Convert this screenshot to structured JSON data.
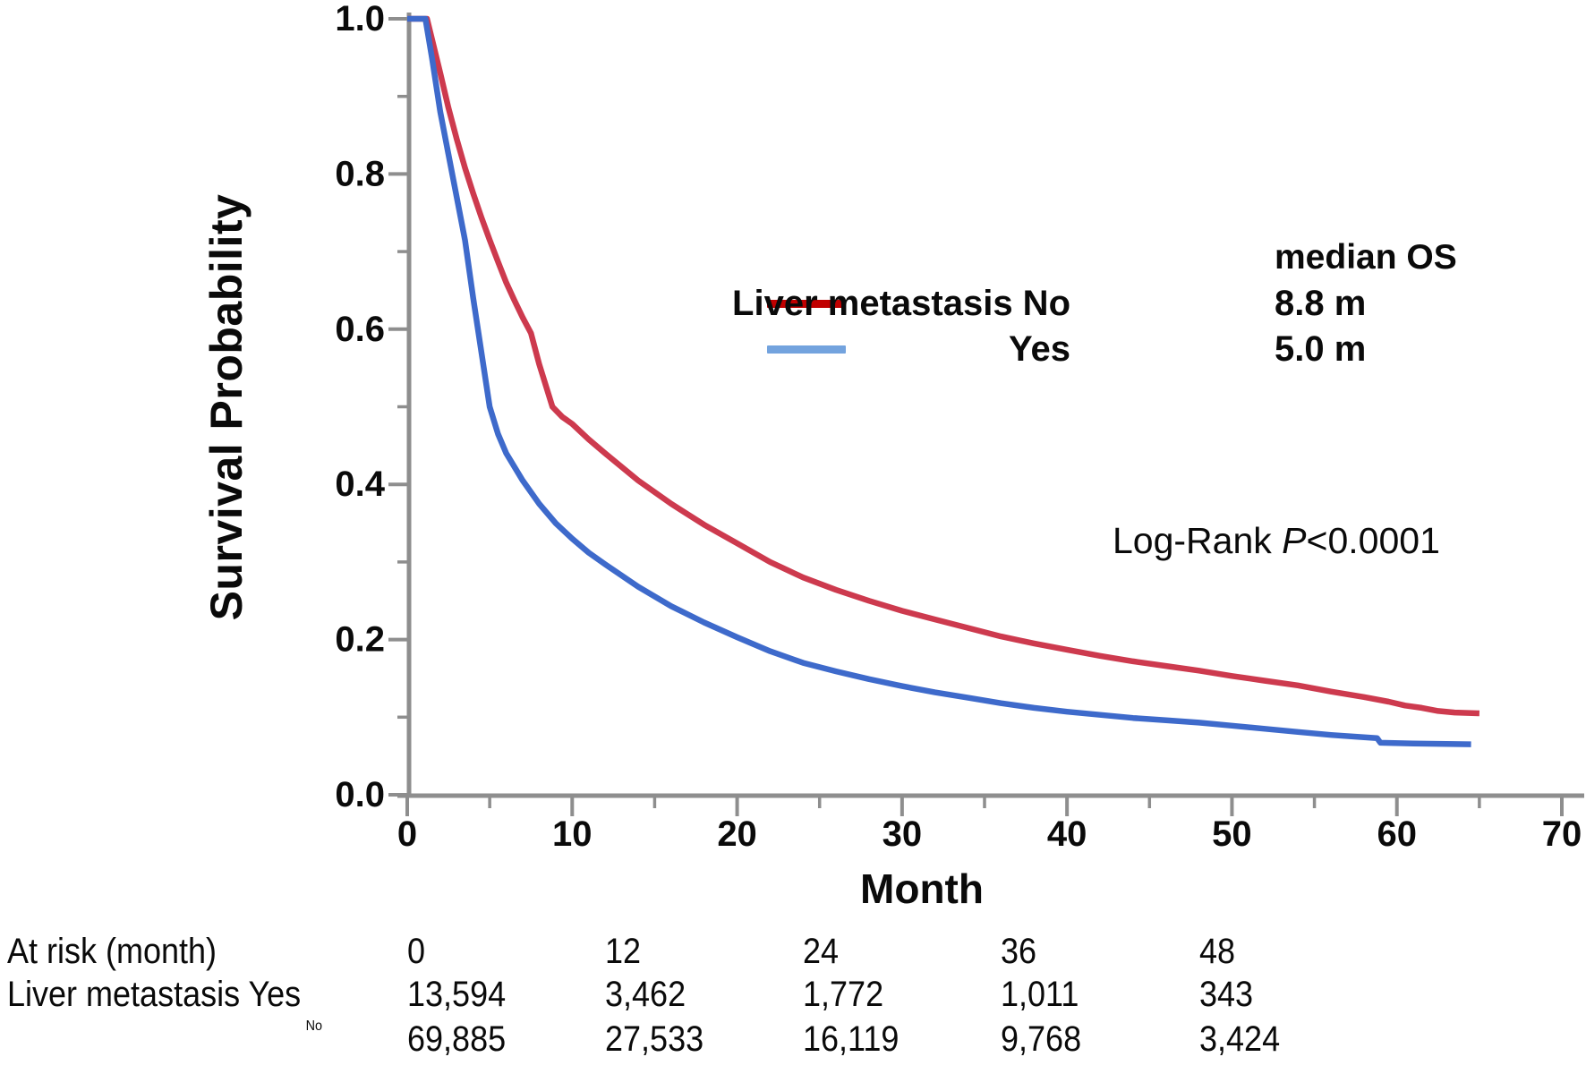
{
  "figure": {
    "y_axis_title": "Survival Probability",
    "x_axis_title": "Month",
    "log_rank": {
      "prefix": "Log-Rank ",
      "p": "P",
      "suffix": "<0.0001"
    }
  },
  "legend": {
    "header": "median OS",
    "items": [
      {
        "label": "Liver metastasis No",
        "median": "8.8 m",
        "color": "#C00000"
      },
      {
        "label": "Yes",
        "median": "5.0 m",
        "color": "#73A3DE"
      }
    ]
  },
  "chart_data": {
    "type": "line",
    "title": "",
    "xlabel": "Month",
    "ylabel": "Survival Probability",
    "xlim": [
      0,
      70
    ],
    "ylim": [
      0.0,
      1.0
    ],
    "grid": false,
    "legend_position": "right-inside",
    "x_ticks_major": [
      0,
      10,
      20,
      30,
      40,
      50,
      60,
      70
    ],
    "x_ticks_minor": [
      5,
      15,
      25,
      35,
      45,
      55,
      65
    ],
    "y_ticks_major": [
      1.0,
      0.8,
      0.6,
      0.4,
      0.2,
      0.0
    ],
    "y_ticks_minor": [
      0.9,
      0.7,
      0.5,
      0.3,
      0.1
    ],
    "x_tick_labels": [
      "0",
      "10",
      "20",
      "30",
      "40",
      "50",
      "60",
      "70"
    ],
    "y_tick_labels": [
      "1.0",
      "0.8",
      "0.6",
      "0.4",
      "0.2",
      "0.0"
    ],
    "axis_color": "#8E8E8E",
    "series": [
      {
        "name": "Liver metastasis No",
        "color": "#CD3A4E",
        "median_os_months": 8.8,
        "points": [
          [
            0,
            1.0
          ],
          [
            1.2,
            1.0
          ],
          [
            1.6,
            0.965
          ],
          [
            2,
            0.93
          ],
          [
            2.5,
            0.885
          ],
          [
            3,
            0.845
          ],
          [
            3.5,
            0.808
          ],
          [
            4,
            0.775
          ],
          [
            4.5,
            0.744
          ],
          [
            5,
            0.715
          ],
          [
            5.5,
            0.687
          ],
          [
            6,
            0.66
          ],
          [
            6.5,
            0.637
          ],
          [
            7,
            0.615
          ],
          [
            7.5,
            0.595
          ],
          [
            8,
            0.555
          ],
          [
            8.8,
            0.5
          ],
          [
            9.4,
            0.487
          ],
          [
            10,
            0.478
          ],
          [
            11,
            0.458
          ],
          [
            12,
            0.44
          ],
          [
            14,
            0.405
          ],
          [
            16,
            0.375
          ],
          [
            18,
            0.348
          ],
          [
            20,
            0.324
          ],
          [
            22,
            0.3
          ],
          [
            24,
            0.28
          ],
          [
            26,
            0.264
          ],
          [
            28,
            0.25
          ],
          [
            30,
            0.237
          ],
          [
            32,
            0.226
          ],
          [
            34,
            0.215
          ],
          [
            36,
            0.204
          ],
          [
            38,
            0.195
          ],
          [
            40,
            0.187
          ],
          [
            42,
            0.179
          ],
          [
            44,
            0.172
          ],
          [
            46,
            0.166
          ],
          [
            48,
            0.16
          ],
          [
            50,
            0.153
          ],
          [
            52,
            0.147
          ],
          [
            54,
            0.141
          ],
          [
            56,
            0.133
          ],
          [
            58,
            0.126
          ],
          [
            59.5,
            0.12
          ],
          [
            60.5,
            0.115
          ],
          [
            61.5,
            0.112
          ],
          [
            62.5,
            0.108
          ],
          [
            63.5,
            0.106
          ],
          [
            65,
            0.105
          ]
        ]
      },
      {
        "name": "Liver metastasis Yes",
        "color": "#3E6ACB",
        "median_os_months": 5.0,
        "points": [
          [
            0,
            1.0
          ],
          [
            1.1,
            1.0
          ],
          [
            1.5,
            0.95
          ],
          [
            2,
            0.88
          ],
          [
            2.5,
            0.825
          ],
          [
            3,
            0.77
          ],
          [
            3.5,
            0.715
          ],
          [
            4,
            0.64
          ],
          [
            4.5,
            0.57
          ],
          [
            5,
            0.5
          ],
          [
            5.5,
            0.465
          ],
          [
            6,
            0.44
          ],
          [
            7,
            0.405
          ],
          [
            8,
            0.375
          ],
          [
            9,
            0.35
          ],
          [
            10,
            0.33
          ],
          [
            11,
            0.312
          ],
          [
            12,
            0.297
          ],
          [
            14,
            0.268
          ],
          [
            16,
            0.243
          ],
          [
            18,
            0.222
          ],
          [
            20,
            0.203
          ],
          [
            22,
            0.185
          ],
          [
            24,
            0.17
          ],
          [
            26,
            0.159
          ],
          [
            28,
            0.149
          ],
          [
            30,
            0.14
          ],
          [
            32,
            0.132
          ],
          [
            34,
            0.125
          ],
          [
            36,
            0.118
          ],
          [
            38,
            0.112
          ],
          [
            40,
            0.107
          ],
          [
            42,
            0.103
          ],
          [
            44,
            0.099
          ],
          [
            46,
            0.096
          ],
          [
            48,
            0.093
          ],
          [
            50,
            0.089
          ],
          [
            52,
            0.085
          ],
          [
            54,
            0.081
          ],
          [
            56,
            0.077
          ],
          [
            58,
            0.074
          ],
          [
            58.8,
            0.073
          ],
          [
            59,
            0.067
          ],
          [
            61,
            0.066
          ],
          [
            64.5,
            0.065
          ]
        ]
      }
    ]
  },
  "at_risk_table": {
    "row_header": "At risk (month)",
    "months": [
      0,
      12,
      24,
      36,
      48
    ],
    "rows": [
      {
        "label": "Liver metastasis Yes",
        "values": [
          "13,594",
          "3,462",
          "1,772",
          "1,011",
          "343"
        ]
      },
      {
        "label": "No",
        "values": [
          "69,885",
          "27,533",
          "16,119",
          "9,768",
          "3,424"
        ]
      }
    ]
  }
}
